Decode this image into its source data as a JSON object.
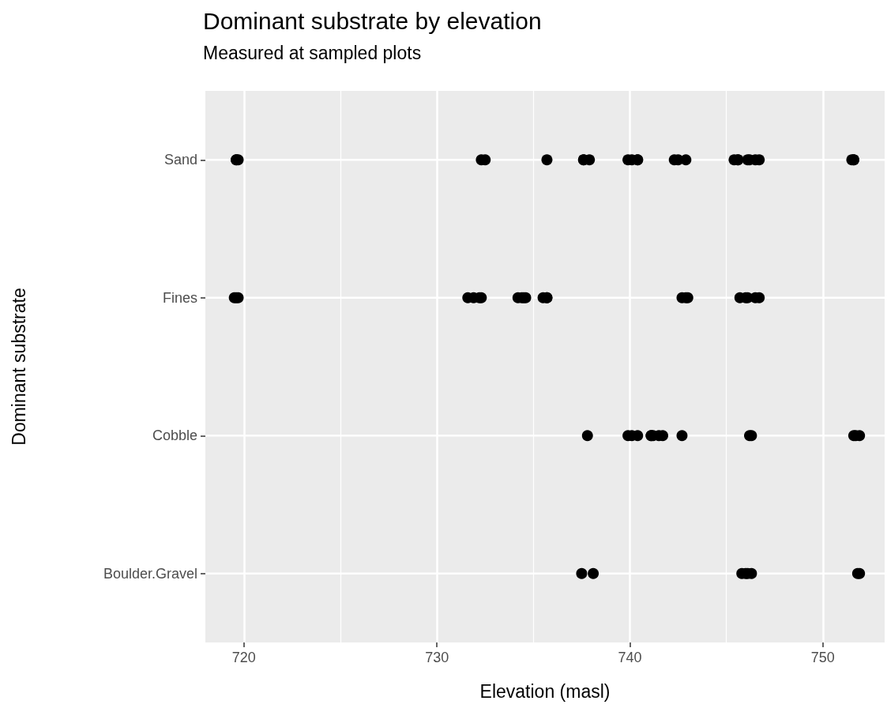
{
  "chart_data": {
    "type": "scatter",
    "orientation": "horizontal",
    "title": "Dominant substrate by elevation",
    "subtitle": "Measured at sampled plots",
    "xlabel": "Elevation (masl)",
    "ylabel": "Dominant substrate",
    "categories": [
      "Sand",
      "Fines",
      "Cobble",
      "Boulder.Gravel"
    ],
    "series": [
      {
        "color": "#000000",
        "x": [
          "Sand",
          "Sand",
          "Sand",
          "Sand",
          "Sand",
          "Sand",
          "Sand",
          "Sand",
          "Sand",
          "Sand",
          "Sand",
          "Sand",
          "Sand",
          "Sand",
          "Sand",
          "Sand",
          "Sand",
          "Sand",
          "Sand",
          "Sand",
          "Sand",
          "Sand",
          "Sand",
          "Sand",
          "Sand",
          "Sand",
          "Fines",
          "Fines",
          "Fines",
          "Fines",
          "Fines",
          "Fines",
          "Fines",
          "Fines",
          "Fines",
          "Fines",
          "Fines",
          "Fines",
          "Fines",
          "Fines",
          "Fines",
          "Fines",
          "Fines",
          "Fines",
          "Fines",
          "Fines",
          "Fines",
          "Fines",
          "Cobble",
          "Cobble",
          "Cobble",
          "Cobble",
          "Cobble",
          "Cobble",
          "Cobble",
          "Cobble",
          "Cobble",
          "Cobble",
          "Cobble",
          "Cobble",
          "Cobble",
          "Cobble",
          "Cobble",
          "Boulder.Gravel",
          "Boulder.Gravel",
          "Boulder.Gravel",
          "Boulder.Gravel",
          "Boulder.Gravel",
          "Boulder.Gravel",
          "Boulder.Gravel",
          "Boulder.Gravel"
        ],
        "values": [
          719.6,
          719.6,
          719.7,
          732.3,
          732.5,
          735.7,
          737.9,
          737.6,
          737.6,
          739.9,
          740.4,
          740.4,
          740.1,
          742.3,
          742.5,
          742.9,
          746.2,
          746.5,
          746.7,
          745.6,
          745.4,
          745.6,
          746.1,
          751.6,
          751.6,
          751.5,
          719.7,
          719.6,
          719.5,
          731.6,
          732.2,
          731.9,
          732.3,
          734.2,
          734.5,
          734.6,
          734.4,
          735.7,
          735.5,
          735.7,
          742.7,
          742.9,
          743.0,
          746.0,
          746.5,
          746.7,
          745.7,
          746.1,
          737.8,
          739.9,
          740.1,
          740.4,
          741.2,
          741.5,
          741.7,
          741.1,
          741.1,
          742.7,
          746.3,
          746.2,
          751.9,
          751.7,
          751.6,
          737.5,
          738.1,
          746.1,
          745.8,
          746.0,
          746.3,
          751.8,
          751.9
        ]
      }
    ],
    "marker": "circle",
    "xlim": [
      718,
      753.2
    ],
    "xticks": [
      720,
      730,
      740,
      750
    ],
    "grid": true
  }
}
